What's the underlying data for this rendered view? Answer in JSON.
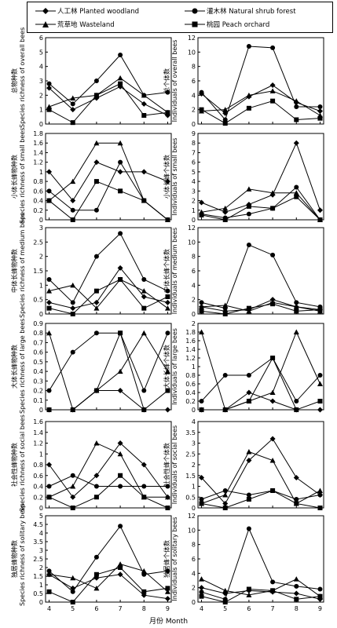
{
  "legend": [
    {
      "label": "人工林 Planted woodland",
      "marker": "diamond"
    },
    {
      "label": "灌木林 Natural shrub forest",
      "marker": "circle"
    },
    {
      "label": "荒草地 Wasteland",
      "marker": "triangle"
    },
    {
      "label": "桃园 Peach orchard",
      "marker": "square"
    }
  ],
  "x_label": "月份 Month",
  "chart_data": [
    {
      "type": "line",
      "ylabel_cn": "总物种数",
      "ylabel_en": "Species richness of overall bees",
      "ylim": [
        0,
        6
      ],
      "yticks": [
        0,
        1,
        2,
        3,
        4,
        5,
        6
      ],
      "x": [
        4,
        5,
        6,
        7,
        8,
        9
      ],
      "series": [
        {
          "name": "人工林 Planted woodland",
          "marker": "diamond",
          "values": [
            2.5,
            1.0,
            1.8,
            2.6,
            1.4,
            0.6
          ]
        },
        {
          "name": "灌木林 Natural shrub forest",
          "marker": "circle",
          "values": [
            2.8,
            1.4,
            3.0,
            4.8,
            2.0,
            2.2
          ]
        },
        {
          "name": "荒草地 Wasteland",
          "marker": "triangle",
          "values": [
            1.2,
            1.8,
            2.0,
            3.2,
            2.0,
            0.8
          ]
        },
        {
          "name": "桃园 Peach orchard",
          "marker": "square",
          "values": [
            1.0,
            0.1,
            2.0,
            2.8,
            0.6,
            0.8
          ]
        }
      ]
    },
    {
      "type": "line",
      "ylabel_cn": "总个体数",
      "ylabel_en": "Individuals of overall bees",
      "ylim": [
        0,
        12
      ],
      "yticks": [
        0,
        2,
        4,
        6,
        8,
        10,
        12
      ],
      "x": [
        4,
        5,
        6,
        7,
        8,
        9
      ],
      "series": [
        {
          "name": "人工林 Planted woodland",
          "marker": "diamond",
          "values": [
            4.2,
            1.5,
            3.8,
            5.4,
            3.0,
            1.8
          ]
        },
        {
          "name": "灌木林 Natural shrub forest",
          "marker": "circle",
          "values": [
            4.4,
            0.6,
            10.8,
            10.6,
            2.4,
            2.4
          ]
        },
        {
          "name": "荒草地 Wasteland",
          "marker": "triangle",
          "values": [
            1.8,
            2.0,
            4.0,
            4.6,
            3.2,
            1.2
          ]
        },
        {
          "name": "桃园 Peach orchard",
          "marker": "square",
          "values": [
            2.0,
            0.1,
            2.2,
            3.2,
            0.6,
            0.8
          ]
        }
      ]
    },
    {
      "type": "line",
      "ylabel_cn": "小体长蜂物种数",
      "ylabel_en": "Species richness of small bees",
      "ylim": [
        0,
        1.8
      ],
      "yticks": [
        0,
        0.2,
        0.4,
        0.6,
        0.8,
        1.0,
        1.2,
        1.4,
        1.6,
        1.8
      ],
      "x": [
        4,
        5,
        6,
        7,
        8,
        9
      ],
      "series": [
        {
          "name": "人工林 Planted woodland",
          "marker": "diamond",
          "values": [
            1.0,
            0.4,
            1.2,
            1.0,
            1.0,
            0.8
          ]
        },
        {
          "name": "灌木林 Natural shrub forest",
          "marker": "circle",
          "values": [
            0.6,
            0.2,
            0.2,
            1.2,
            0.4,
            0.0
          ]
        },
        {
          "name": "荒草地 Wasteland",
          "marker": "triangle",
          "values": [
            0.4,
            0.8,
            1.6,
            1.6,
            0.4,
            0.0
          ]
        },
        {
          "name": "桃园 Peach orchard",
          "marker": "square",
          "values": [
            0.4,
            0.0,
            0.8,
            0.6,
            0.4,
            0.0
          ]
        }
      ]
    },
    {
      "type": "line",
      "ylabel_cn": "小体长蜂个体数",
      "ylabel_en": "Individuals of small bees",
      "ylim": [
        0,
        9
      ],
      "yticks": [
        0,
        1,
        2,
        3,
        4,
        5,
        6,
        7,
        8,
        9
      ],
      "x": [
        4,
        5,
        6,
        7,
        8,
        9
      ],
      "series": [
        {
          "name": "人工林 Planted woodland",
          "marker": "diamond",
          "values": [
            1.8,
            0.8,
            1.6,
            2.6,
            8.0,
            1.0
          ]
        },
        {
          "name": "灌木林 Natural shrub forest",
          "marker": "circle",
          "values": [
            0.6,
            0.2,
            0.6,
            1.2,
            3.4,
            0.0
          ]
        },
        {
          "name": "荒草地 Wasteland",
          "marker": "triangle",
          "values": [
            0.8,
            1.2,
            3.2,
            2.8,
            2.8,
            0.0
          ]
        },
        {
          "name": "桃园 Peach orchard",
          "marker": "square",
          "values": [
            0.5,
            0.0,
            1.4,
            1.2,
            2.4,
            0.0
          ]
        }
      ]
    },
    {
      "type": "line",
      "ylabel_cn": "中体长蜂物种数",
      "ylabel_en": "Species richness of medium bees",
      "ylim": [
        0,
        3.0
      ],
      "yticks": [
        0,
        0.5,
        1.0,
        1.5,
        2.0,
        2.5,
        3.0
      ],
      "x": [
        4,
        5,
        6,
        7,
        8,
        9
      ],
      "series": [
        {
          "name": "人工林 Planted woodland",
          "marker": "diamond",
          "values": [
            0.4,
            0.2,
            0.4,
            1.6,
            0.6,
            0.4
          ]
        },
        {
          "name": "灌木林 Natural shrub forest",
          "marker": "circle",
          "values": [
            1.2,
            0.4,
            2.0,
            2.8,
            1.2,
            0.8
          ]
        },
        {
          "name": "荒草地 Wasteland",
          "marker": "triangle",
          "values": [
            0.8,
            1.0,
            0.2,
            1.2,
            0.8,
            0.2
          ]
        },
        {
          "name": "桃园 Peach orchard",
          "marker": "square",
          "values": [
            0.2,
            0.0,
            0.8,
            1.2,
            0.2,
            0.6
          ]
        }
      ]
    },
    {
      "type": "line",
      "ylabel_cn": "中体长蜂个体数",
      "ylabel_en": "Individuals of medium bees",
      "ylim": [
        0,
        12
      ],
      "yticks": [
        0,
        2,
        4,
        6,
        8,
        10,
        12
      ],
      "x": [
        4,
        5,
        6,
        7,
        8,
        9
      ],
      "series": [
        {
          "name": "人工林 Planted woodland",
          "marker": "diamond",
          "values": [
            1.0,
            0.4,
            0.6,
            2.0,
            1.0,
            0.6
          ]
        },
        {
          "name": "灌木林 Natural shrub forest",
          "marker": "circle",
          "values": [
            1.6,
            0.8,
            9.6,
            8.2,
            1.6,
            1.0
          ]
        },
        {
          "name": "荒草地 Wasteland",
          "marker": "triangle",
          "values": [
            1.0,
            1.2,
            0.4,
            1.6,
            1.0,
            0.4
          ]
        },
        {
          "name": "桃园 Peach orchard",
          "marker": "square",
          "values": [
            0.4,
            0.0,
            0.8,
            1.4,
            0.4,
            0.6
          ]
        }
      ]
    },
    {
      "type": "line",
      "ylabel_cn": "大体长蜂物种数",
      "ylabel_en": "Species richness of large bees",
      "ylim": [
        0,
        0.9
      ],
      "yticks": [
        0,
        0.1,
        0.2,
        0.3,
        0.4,
        0.5,
        0.6,
        0.7,
        0.8,
        0.9
      ],
      "x": [
        4,
        5,
        6,
        7,
        8,
        9
      ],
      "series": [
        {
          "name": "人工林 Planted woodland",
          "marker": "diamond",
          "values": [
            0.0,
            0.0,
            0.2,
            0.2,
            0.0,
            0.0
          ]
        },
        {
          "name": "灌木林 Natural shrub forest",
          "marker": "circle",
          "values": [
            0.2,
            0.6,
            0.8,
            0.8,
            0.2,
            0.8
          ]
        },
        {
          "name": "荒草地 Wasteland",
          "marker": "triangle",
          "values": [
            0.8,
            0.0,
            0.2,
            0.4,
            0.8,
            0.4
          ]
        },
        {
          "name": "桃园 Peach orchard",
          "marker": "square",
          "values": [
            0.0,
            0.0,
            0.2,
            0.8,
            0.0,
            0.2
          ]
        }
      ]
    },
    {
      "type": "line",
      "ylabel_cn": "大体长蜂个体数",
      "ylabel_en": "Individuals of large bees",
      "ylim": [
        0,
        2.0
      ],
      "yticks": [
        0,
        0.2,
        0.4,
        0.6,
        0.8,
        1.0,
        1.2,
        1.4,
        1.6,
        1.8,
        2.0
      ],
      "x": [
        4,
        5,
        6,
        7,
        8,
        9
      ],
      "series": [
        {
          "name": "人工林 Planted woodland",
          "marker": "diamond",
          "values": [
            0.0,
            0.0,
            0.4,
            0.2,
            0.0,
            0.0
          ]
        },
        {
          "name": "灌木林 Natural shrub forest",
          "marker": "circle",
          "values": [
            0.2,
            0.8,
            0.8,
            1.2,
            0.2,
            0.8
          ]
        },
        {
          "name": "荒草地 Wasteland",
          "marker": "triangle",
          "values": [
            1.8,
            0.0,
            0.2,
            0.4,
            1.8,
            0.6
          ]
        },
        {
          "name": "桃园 Peach orchard",
          "marker": "square",
          "values": [
            0.0,
            0.0,
            0.2,
            1.2,
            0.0,
            0.2
          ]
        }
      ]
    },
    {
      "type": "line",
      "ylabel_cn": "社会性蜂物种数",
      "ylabel_en": "Species richness of social bees",
      "ylim": [
        0,
        1.6
      ],
      "yticks": [
        0,
        0.2,
        0.4,
        0.6,
        0.8,
        1.0,
        1.2,
        1.4,
        1.6
      ],
      "x": [
        4,
        5,
        6,
        7,
        8,
        9
      ],
      "series": [
        {
          "name": "人工林 Planted woodland",
          "marker": "diamond",
          "values": [
            0.8,
            0.2,
            0.6,
            1.2,
            0.8,
            0.2
          ]
        },
        {
          "name": "灌木林 Natural shrub forest",
          "marker": "circle",
          "values": [
            0.4,
            0.6,
            0.4,
            0.4,
            0.4,
            0.4
          ]
        },
        {
          "name": "荒草地 Wasteland",
          "marker": "triangle",
          "values": [
            0.2,
            0.4,
            1.2,
            1.0,
            0.2,
            0.2
          ]
        },
        {
          "name": "桃园 Peach orchard",
          "marker": "square",
          "values": [
            0.2,
            0.0,
            0.2,
            0.6,
            0.2,
            0.0
          ]
        }
      ]
    },
    {
      "type": "line",
      "ylabel_cn": "社会性蜂个体数",
      "ylabel_en": "Individuals of social bees",
      "ylim": [
        0,
        4.0
      ],
      "yticks": [
        0,
        0.5,
        1.0,
        1.5,
        2.0,
        2.5,
        3.0,
        3.5,
        4.0
      ],
      "x": [
        4,
        5,
        6,
        7,
        8,
        9
      ],
      "series": [
        {
          "name": "人工林 Planted woodland",
          "marker": "diamond",
          "values": [
            1.4,
            0.2,
            2.2,
            3.2,
            1.4,
            0.6
          ]
        },
        {
          "name": "灌木林 Natural shrub forest",
          "marker": "circle",
          "values": [
            0.4,
            0.8,
            0.6,
            0.8,
            0.4,
            0.6
          ]
        },
        {
          "name": "荒草地 Wasteland",
          "marker": "triangle",
          "values": [
            0.2,
            0.6,
            2.6,
            2.2,
            0.2,
            0.8
          ]
        },
        {
          "name": "桃园 Peach orchard",
          "marker": "square",
          "values": [
            0.2,
            0.0,
            0.4,
            0.8,
            0.2,
            0.0
          ]
        }
      ]
    },
    {
      "type": "line",
      "ylabel_cn": "独居蜂物种数",
      "ylabel_en": "Species richness of solitary bees",
      "ylim": [
        0,
        5.0
      ],
      "yticks": [
        0,
        0.5,
        1.0,
        1.5,
        2.0,
        2.5,
        3.0,
        3.5,
        4.0,
        4.5,
        5.0
      ],
      "x": [
        4,
        5,
        6,
        7,
        8,
        9
      ],
      "series": [
        {
          "name": "人工林 Planted woodland",
          "marker": "diamond",
          "values": [
            1.6,
            0.8,
            1.4,
            1.6,
            0.4,
            0.2
          ]
        },
        {
          "name": "灌木林 Natural shrub forest",
          "marker": "circle",
          "values": [
            1.8,
            0.6,
            2.6,
            4.4,
            1.6,
            1.8
          ]
        },
        {
          "name": "荒草地 Wasteland",
          "marker": "triangle",
          "values": [
            1.6,
            1.4,
            0.8,
            2.2,
            1.8,
            0.6
          ]
        },
        {
          "name": "桃园 Peach orchard",
          "marker": "square",
          "values": [
            0.6,
            0.0,
            1.6,
            2.0,
            0.6,
            0.8
          ]
        }
      ]
    },
    {
      "type": "line",
      "ylabel_cn": "独居蜂个体数",
      "ylabel_en": "Individuals of solitary bees",
      "ylim": [
        0,
        12
      ],
      "yticks": [
        0,
        2,
        4,
        6,
        8,
        10,
        12
      ],
      "x": [
        4,
        5,
        6,
        7,
        8,
        9
      ],
      "series": [
        {
          "name": "人工林 Planted woodland",
          "marker": "diamond",
          "values": [
            2.0,
            1.2,
            1.6,
            1.4,
            1.2,
            0.4
          ]
        },
        {
          "name": "灌木林 Natural shrub forest",
          "marker": "circle",
          "values": [
            1.4,
            0.4,
            10.2,
            2.8,
            2.2,
            1.8
          ]
        },
        {
          "name": "荒草地 Wasteland",
          "marker": "triangle",
          "values": [
            3.2,
            1.6,
            1.0,
            1.6,
            3.2,
            0.8
          ]
        },
        {
          "name": "桃园 Peach orchard",
          "marker": "square",
          "values": [
            0.8,
            0.0,
            1.8,
            1.6,
            0.4,
            0.8
          ]
        }
      ]
    }
  ]
}
